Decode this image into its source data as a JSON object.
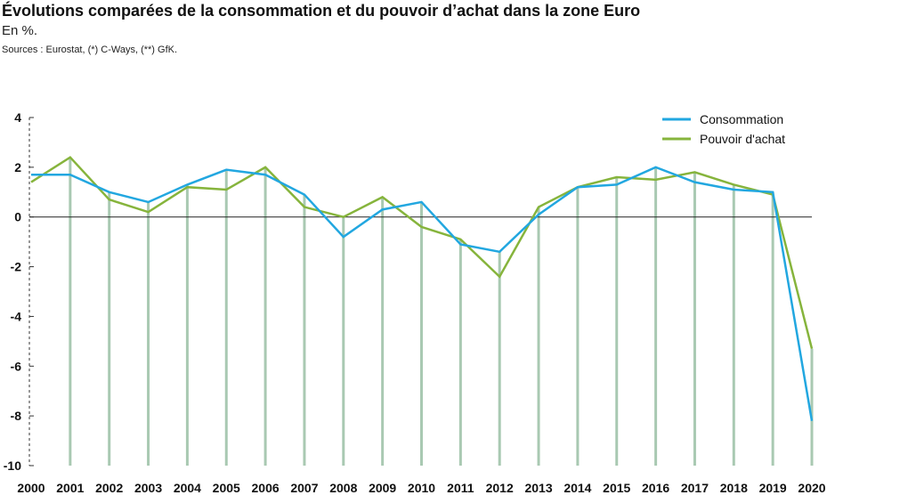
{
  "chart_data": {
    "type": "line",
    "title": "Évolutions comparées de la consommation et du pouvoir d’achat dans la zone Euro",
    "subtitle": "En %.",
    "source": "Sources : Eurostat, (*) C-Ways, (**) GfK.",
    "x": [
      "2000",
      "2001",
      "2002",
      "2003",
      "2004",
      "2005",
      "2006",
      "2007",
      "2008",
      "2009",
      "2010",
      "2011",
      "2012",
      "2013",
      "2014",
      "2015",
      "2016",
      "2017",
      "2018",
      "2019",
      "2020"
    ],
    "ylim": [
      -10,
      4
    ],
    "yticks": [
      "4",
      "2",
      "0",
      "-2",
      "-4",
      "-6",
      "-8",
      "-10"
    ],
    "legend_position": "top-right",
    "series": [
      {
        "name": "Consommation",
        "color": "#22a7e0",
        "values": [
          1.7,
          1.7,
          1.0,
          0.6,
          1.3,
          1.9,
          1.7,
          0.9,
          -0.8,
          0.3,
          0.6,
          -1.1,
          -1.4,
          0.1,
          1.2,
          1.3,
          2.0,
          1.4,
          1.1,
          1.0,
          -8.2
        ]
      },
      {
        "name": "Pouvoir d'achat",
        "color": "#86b43c",
        "values": [
          1.4,
          2.4,
          0.7,
          0.2,
          1.2,
          1.1,
          2.0,
          0.4,
          0.0,
          0.8,
          -0.4,
          -0.9,
          -2.4,
          0.4,
          1.2,
          1.6,
          1.5,
          1.8,
          1.3,
          0.9,
          -5.3
        ]
      }
    ]
  }
}
